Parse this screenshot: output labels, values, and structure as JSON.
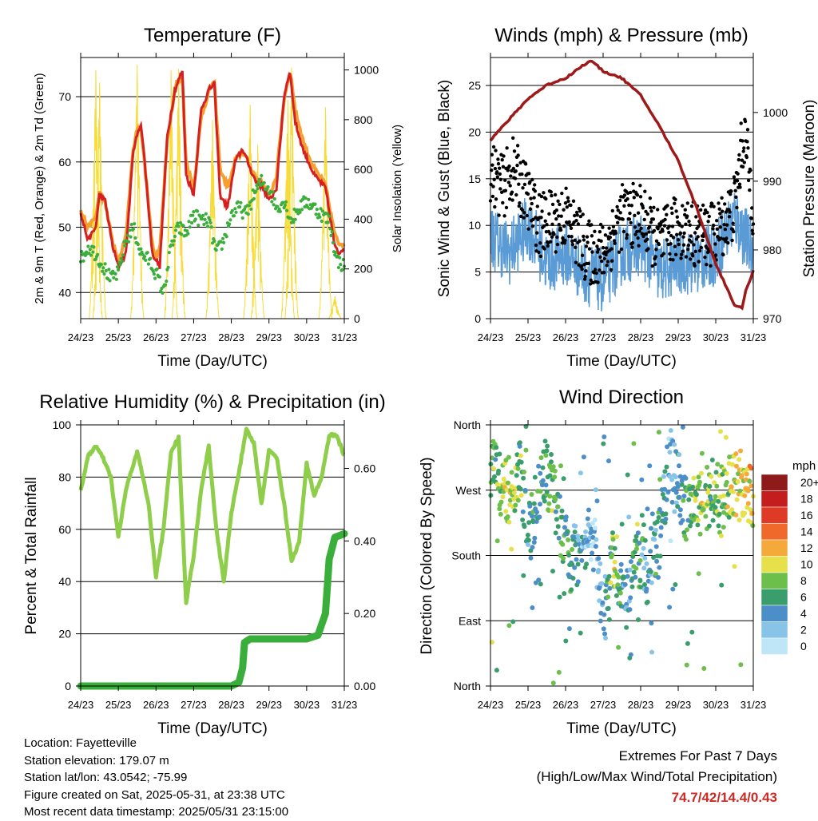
{
  "panels": {
    "temperature": {
      "title": "Temperature (F)",
      "ylabel_left": "2m & 9m T (Red, Orange) & 2m Td (Green)",
      "ylabel_right": "Solar Insolation (Yellow)",
      "xlabel": "Time (Day/UTC)",
      "yticks_left": [
        "40",
        "50",
        "60",
        "70"
      ],
      "yticks_right": [
        "0",
        "200",
        "400",
        "600",
        "800",
        "1000"
      ]
    },
    "winds": {
      "title": "Winds (mph) & Pressure (mb)",
      "ylabel_left": "Sonic Wind & Gust (Blue, Black)",
      "ylabel_right": "Station Pressure (Maroon)",
      "xlabel": "Time (Day/UTC)",
      "yticks_left": [
        "0",
        "5",
        "10",
        "15",
        "20",
        "25"
      ],
      "yticks_right": [
        "970",
        "980",
        "990",
        "1000"
      ]
    },
    "humidity": {
      "title": "Relative Humidity (%) & Precipitation (in)",
      "ylabel_left": "Percent & Total Rainfall",
      "xlabel": "Time (Day/UTC)",
      "yticks_left": [
        "0",
        "20",
        "40",
        "60",
        "80",
        "100"
      ],
      "yticks_right": [
        "0.00",
        "0.20",
        "0.40",
        "0.60"
      ]
    },
    "direction": {
      "title": "Wind Direction",
      "ylabel_left": "Direction (Colored By Speed)",
      "xlabel": "Time (Day/UTC)",
      "yticks_left": [
        "North",
        "East",
        "South",
        "West",
        "North"
      ],
      "legend_title": "mph",
      "legend_labels": [
        "0",
        "2",
        "4",
        "6",
        "8",
        "10",
        "12",
        "14",
        "16",
        "18",
        "20+"
      ],
      "legend_colors": [
        "#bfe6f7",
        "#87c4e8",
        "#4c8fc8",
        "#3a9e6c",
        "#6cbf4a",
        "#e6e04a",
        "#f6a93b",
        "#ef6a2a",
        "#de3a26",
        "#c41d1d",
        "#8e1a1a"
      ]
    }
  },
  "xticks": [
    "24/23",
    "25/23",
    "26/23",
    "27/23",
    "28/23",
    "29/23",
    "30/23",
    "31/23"
  ],
  "info": {
    "location": "Location: Fayetteville",
    "elevation": "Station elevation: 179.07 m",
    "latlon": "Station lat/lon: 43.0542; -75.99",
    "created": "Figure created on Sat, 2025-05-31, at 23:38 UTC",
    "recent": "Most recent data timestamp: 2025/05/31 23:15:00"
  },
  "extremes": {
    "line1": "Extremes For Past 7 Days",
    "line2": "(High/Low/Max Wind/Total Precipitation)",
    "values": "74.7/42/14.4/0.43"
  },
  "colors": {
    "temp2m": "#d42020",
    "temp9m": "#f4a030",
    "dewpoint": "#3cae3c",
    "solar": "#f6dc3a",
    "wind": "#5b9bd5",
    "gust": "#000000",
    "pressure": "#9e1a1a",
    "rh": "#8fce4a",
    "precip": "#3aae3a"
  },
  "chart_data": [
    {
      "type": "line",
      "title": "Temperature (F)",
      "xlabel": "Time (Day/UTC)",
      "xlim": [
        0,
        7
      ],
      "ylim": [
        36,
        76
      ],
      "y2lim": [
        0,
        1050
      ],
      "series": [
        {
          "name": "2m T",
          "x": [
            0,
            0.2,
            0.4,
            0.5,
            0.65,
            0.85,
            1.0,
            1.2,
            1.4,
            1.6,
            1.7,
            1.9,
            2.1,
            2.3,
            2.5,
            2.7,
            2.8,
            3.0,
            3.2,
            3.4,
            3.55,
            3.7,
            3.9,
            4.1,
            4.3,
            4.5,
            4.65,
            4.85,
            5.0,
            5.2,
            5.4,
            5.55,
            5.7,
            5.9,
            6.2,
            6.5,
            6.75,
            6.85,
            7.0
          ],
          "y": [
            52,
            48,
            50,
            55,
            54,
            47,
            44,
            46,
            62,
            66,
            60,
            46,
            44,
            64,
            71,
            74,
            58,
            55,
            68,
            71,
            72,
            55,
            53,
            60,
            62,
            59,
            57,
            56,
            54,
            56,
            70,
            74,
            66,
            62,
            58,
            56,
            47,
            46,
            47
          ]
        },
        {
          "name": "9m T",
          "x": [
            0,
            0.5,
            1.0,
            1.5,
            2.0,
            2.55,
            3.0,
            3.5,
            4.0,
            4.5,
            5.0,
            5.6,
            6.0,
            6.5,
            7.0
          ],
          "y": [
            51.5,
            54,
            44.5,
            65,
            45,
            72,
            56,
            71,
            59,
            58.5,
            54,
            73,
            62,
            55.5,
            46.5
          ]
        },
        {
          "name": "2m Td",
          "x": [
            0,
            0.2,
            0.4,
            0.6,
            0.8,
            1.0,
            1.2,
            1.4,
            1.6,
            1.8,
            2.0,
            2.2,
            2.4,
            2.6,
            2.8,
            3.0,
            3.2,
            3.4,
            3.6,
            3.8,
            4.0,
            4.2,
            4.4,
            4.6,
            4.8,
            5.0,
            5.2,
            5.4,
            5.6,
            5.8,
            6.0,
            6.2,
            6.4,
            6.6,
            6.8,
            7.0
          ],
          "y": [
            45,
            47,
            46,
            44,
            42,
            43,
            48,
            50,
            46,
            45,
            43,
            40,
            47,
            50,
            49,
            52,
            51,
            51,
            46,
            48,
            52,
            53,
            52,
            55,
            57,
            56,
            53,
            54,
            51,
            53,
            54,
            53,
            52,
            51,
            45,
            44
          ]
        },
        {
          "name": "Solar Insolation",
          "axis": "right",
          "peaks_x": [
            0.4,
            0.5,
            1.5,
            2.4,
            2.6,
            3.5,
            4.5,
            4.7,
            5.5,
            5.6,
            6.5,
            6.75
          ],
          "peaks_y": [
            1000,
            950,
            1020,
            1000,
            1005,
            800,
            860,
            700,
            880,
            1010,
            850,
            90
          ]
        }
      ]
    },
    {
      "type": "line",
      "title": "Winds (mph) & Pressure (mb)",
      "xlabel": "Time (Day/UTC)",
      "xlim": [
        0,
        7
      ],
      "ylim": [
        0,
        28
      ],
      "y2lim": [
        970,
        1008
      ],
      "series": [
        {
          "name": "Sonic Wind",
          "x": [
            0,
            0.5,
            1.0,
            1.5,
            2.0,
            2.5,
            3.0,
            3.5,
            4.0,
            4.5,
            5.0,
            5.5,
            6.0,
            6.5,
            7.0
          ],
          "y": [
            9,
            7,
            10,
            6,
            7,
            5,
            4,
            7,
            8,
            5,
            6,
            6,
            7,
            11,
            7
          ]
        },
        {
          "name": "Gust",
          "x": [
            0,
            0.3,
            0.6,
            1.0,
            1.3,
            2.0,
            2.6,
            3.0,
            3.5,
            4.0,
            4.5,
            5.0,
            5.5,
            6.0,
            6.5,
            6.75,
            7.0
          ],
          "y": [
            16,
            14,
            16,
            13,
            10,
            11,
            7,
            7,
            11,
            11,
            8,
            10,
            9,
            9,
            12,
            20,
            12
          ]
        },
        {
          "name": "Station Pressure",
          "axis": "right",
          "x": [
            0,
            0.5,
            1.0,
            1.5,
            2.0,
            2.5,
            2.7,
            3.0,
            3.5,
            4.0,
            4.5,
            5.0,
            5.5,
            6.0,
            6.5,
            6.7,
            6.8,
            7.0
          ],
          "y": [
            996,
            999,
            1002,
            1004,
            1005,
            1007,
            1007.5,
            1006,
            1005,
            1002.5,
            998,
            993,
            986,
            978,
            972,
            971.5,
            974,
            977
          ]
        }
      ]
    },
    {
      "type": "line",
      "title": "Relative Humidity (%) & Precipitation (in)",
      "xlabel": "Time (Day/UTC)",
      "xlim": [
        0,
        7
      ],
      "ylim": [
        0,
        100
      ],
      "y2lim": [
        0,
        0.72
      ],
      "series": [
        {
          "name": "Relative Humidity",
          "x": [
            0,
            0.2,
            0.4,
            0.6,
            0.8,
            1.0,
            1.2,
            1.5,
            1.8,
            2.0,
            2.2,
            2.4,
            2.6,
            2.8,
            3.0,
            3.2,
            3.4,
            3.6,
            3.8,
            4.0,
            4.2,
            4.4,
            4.6,
            4.8,
            5.0,
            5.2,
            5.4,
            5.6,
            5.8,
            6.0,
            6.2,
            6.4,
            6.6,
            6.8,
            7.0
          ],
          "y": [
            75,
            88,
            92,
            87,
            80,
            57,
            75,
            90,
            70,
            42,
            60,
            90,
            95,
            32,
            50,
            75,
            92,
            60,
            40,
            66,
            82,
            98,
            93,
            70,
            90,
            88,
            70,
            48,
            55,
            85,
            73,
            80,
            96,
            96,
            88
          ]
        },
        {
          "name": "Total Precipitation",
          "axis": "right",
          "x": [
            0,
            4.0,
            4.2,
            4.3,
            4.35,
            4.5,
            5.0,
            6.0,
            6.3,
            6.5,
            6.6,
            6.75,
            7.0
          ],
          "y": [
            0,
            0,
            0.01,
            0.05,
            0.12,
            0.13,
            0.13,
            0.13,
            0.14,
            0.2,
            0.35,
            0.41,
            0.42
          ]
        }
      ]
    },
    {
      "type": "scatter",
      "title": "Wind Direction",
      "xlabel": "Time (Day/UTC)",
      "xlim": [
        0,
        7
      ],
      "ylim": [
        0,
        360
      ],
      "series": [
        {
          "name": "Direction",
          "x": [
            0.1,
            0.3,
            0.5,
            0.8,
            1.0,
            1.4,
            1.6,
            2.1,
            2.3,
            2.7,
            3.0,
            3.3,
            3.6,
            3.9,
            4.2,
            4.5,
            4.8,
            5.2,
            5.6,
            5.9,
            6.2,
            6.5,
            6.8
          ],
          "y": [
            300,
            275,
            260,
            300,
            200,
            300,
            280,
            170,
            180,
            220,
            90,
            180,
            120,
            180,
            150,
            200,
            330,
            240,
            250,
            270,
            260,
            280,
            260
          ],
          "speed": [
            8,
            9,
            11,
            8,
            6,
            7,
            8,
            7,
            5,
            3,
            4,
            10,
            4,
            8,
            4,
            7,
            3,
            7,
            10,
            8,
            9,
            11,
            12
          ]
        }
      ]
    }
  ]
}
